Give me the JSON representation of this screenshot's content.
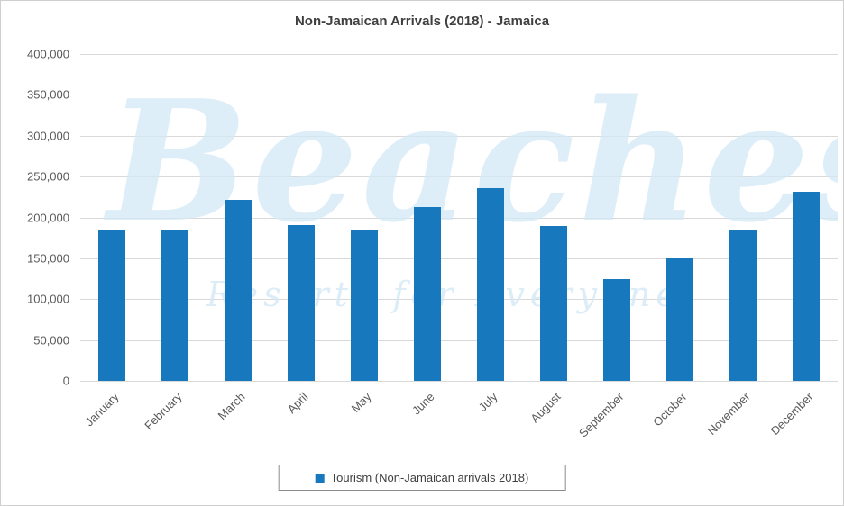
{
  "title": "Non-Jamaican Arrivals (2018) - Jamaica",
  "watermark": {
    "primary": "Beaches",
    "secondary": "Resorts for Everyone"
  },
  "legend": {
    "label": "Tourism (Non-Jamaican arrivals 2018)"
  },
  "colors": {
    "bar": "#1778be",
    "grid": "#d9d9d9",
    "text": "#595959",
    "title": "#3f3f3f",
    "watermark": "#d4e9f6"
  },
  "y_axis": {
    "tick_labels": [
      "400,000",
      "350,000",
      "300,000",
      "250,000",
      "200,000",
      "150,000",
      "100,000",
      "50,000",
      "0"
    ]
  },
  "chart_data": {
    "type": "bar",
    "title": "Non-Jamaican Arrivals (2018) - Jamaica",
    "categories": [
      "January",
      "February",
      "March",
      "April",
      "May",
      "June",
      "July",
      "August",
      "September",
      "October",
      "November",
      "December"
    ],
    "series": [
      {
        "name": "Tourism (Non-Jamaican arrivals 2018)",
        "values": [
          184000,
          184000,
          221000,
          191000,
          184000,
          213000,
          236000,
          190000,
          124000,
          150000,
          185000,
          231000
        ]
      }
    ],
    "xlabel": "",
    "ylabel": "",
    "ylim": [
      0,
      400000
    ],
    "ytick_step": 50000,
    "grid": true,
    "legend_position": "bottom"
  }
}
